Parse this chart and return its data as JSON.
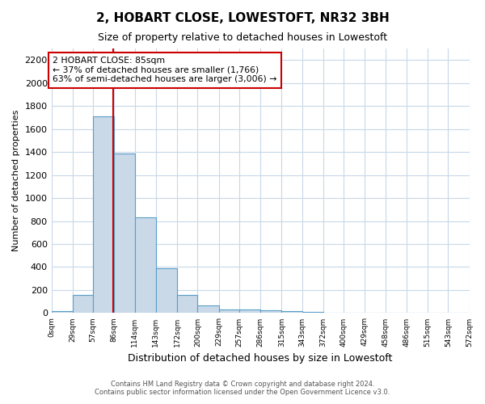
{
  "title": "2, HOBART CLOSE, LOWESTOFT, NR32 3BH",
  "subtitle": "Size of property relative to detached houses in Lowestoft",
  "xlabel": "Distribution of detached houses by size in Lowestoft",
  "ylabel": "Number of detached properties",
  "bar_edges": [
    0,
    29,
    57,
    86,
    114,
    143,
    172,
    200,
    229,
    257,
    286,
    315,
    343,
    372,
    400,
    429,
    458,
    486,
    515,
    543,
    572
  ],
  "bar_heights": [
    20,
    155,
    1710,
    1385,
    830,
    390,
    160,
    65,
    30,
    30,
    25,
    18,
    10,
    0,
    0,
    0,
    0,
    0,
    0,
    0
  ],
  "bar_color": "#c9d9e8",
  "bar_edge_color": "#5a9ec9",
  "property_line_x": 85,
  "property_line_color": "#cc0000",
  "annotation_text": "2 HOBART CLOSE: 85sqm\n← 37% of detached houses are smaller (1,766)\n63% of semi-detached houses are larger (3,006) →",
  "annotation_box_color": "#cc0000",
  "annotation_text_color": "#000000",
  "ylim": [
    0,
    2300
  ],
  "yticks": [
    0,
    200,
    400,
    600,
    800,
    1000,
    1200,
    1400,
    1600,
    1800,
    2000,
    2200
  ],
  "tick_labels": [
    "0sqm",
    "29sqm",
    "57sqm",
    "86sqm",
    "114sqm",
    "143sqm",
    "172sqm",
    "200sqm",
    "229sqm",
    "257sqm",
    "286sqm",
    "315sqm",
    "343sqm",
    "372sqm",
    "400sqm",
    "429sqm",
    "458sqm",
    "486sqm",
    "515sqm",
    "543sqm",
    "572sqm"
  ],
  "footer_text": "Contains HM Land Registry data © Crown copyright and database right 2024.\nContains public sector information licensed under the Open Government Licence v3.0.",
  "background_color": "#ffffff",
  "grid_color": "#c8d8e8",
  "title_fontsize": 11,
  "subtitle_fontsize": 9,
  "ylabel_fontsize": 8,
  "xlabel_fontsize": 9
}
